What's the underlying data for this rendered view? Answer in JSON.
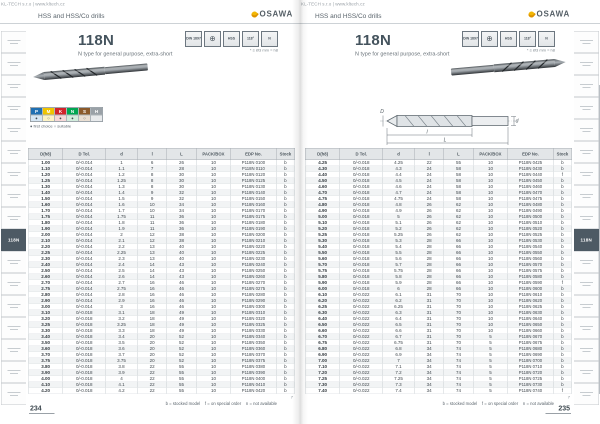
{
  "header": {
    "url_line": "KL-TECH s.r.o | www.kltech.cz",
    "category": "HSS and HSS/Co drills",
    "brand": "OSAWA"
  },
  "product": {
    "series": "118N",
    "description": "N type for general purpose, extra-short",
    "icons": [
      {
        "name": "din-1897-icon",
        "label": "DIN 1897"
      },
      {
        "name": "cross-section-icon",
        "label": "⊕"
      },
      {
        "name": "hss-grade-icon",
        "label": "HSS"
      },
      {
        "name": "point-angle-118-icon",
        "label": "118°"
      },
      {
        "name": "helix-n-icon",
        "label": "N"
      }
    ],
    "icon_note": "* ≤ Ø3 mm = h8"
  },
  "material_strip": {
    "groups": [
      {
        "code": "P",
        "color": "#1f6fb2",
        "tint": "#d6e6f3",
        "mark": "●"
      },
      {
        "code": "M",
        "color": "#f0c400",
        "tint": "#fdf3c4",
        "mark": "○"
      },
      {
        "code": "K",
        "color": "#d2232a",
        "tint": "#f6d7d8",
        "mark": "●"
      },
      {
        "code": "N",
        "color": "#00a651",
        "tint": "#d2ecdc",
        "mark": "●"
      },
      {
        "code": "S",
        "color": "#8b5a2b",
        "tint": "#e9ded2",
        "mark": "○"
      },
      {
        "code": "H",
        "color": "#9aa1a7",
        "tint": "#e8eaec",
        "mark": ""
      }
    ],
    "legend": "● first choice    ○ suitable"
  },
  "diagram": {
    "labels": {
      "D": "D",
      "d": "d",
      "l": "l",
      "L": "L"
    }
  },
  "table": {
    "columns": [
      "D(h8)",
      "D Tol.",
      "d",
      "l",
      "L",
      "PACK/BOX",
      "EDP No.",
      "Stock"
    ]
  },
  "left_table_rows": [
    [
      "1.00",
      "0/-0.014",
      "1",
      "6",
      "26",
      "10",
      "P118N 0100",
      "b"
    ],
    [
      "1.10",
      "0/-0.014",
      "1.1",
      "7",
      "28",
      "10",
      "P118N 0110",
      "b"
    ],
    [
      "1.20",
      "0/-0.014",
      "1.2",
      "8",
      "30",
      "10",
      "P118N 0120",
      "b"
    ],
    [
      "1.25",
      "0/-0.014",
      "1.25",
      "8",
      "30",
      "10",
      "P118N 0125",
      "b"
    ],
    [
      "1.30",
      "0/-0.014",
      "1.3",
      "8",
      "30",
      "10",
      "P118N 0130",
      "b"
    ],
    [
      "1.40",
      "0/-0.014",
      "1.4",
      "9",
      "32",
      "10",
      "P118N 0140",
      "b"
    ],
    [
      "1.50",
      "0/-0.014",
      "1.5",
      "9",
      "32",
      "10",
      "P118N 0150",
      "b"
    ],
    [
      "1.60",
      "0/-0.014",
      "1.6",
      "10",
      "34",
      "10",
      "P118N 0160",
      "b"
    ],
    [
      "1.70",
      "0/-0.014",
      "1.7",
      "10",
      "34",
      "10",
      "P118N 0170",
      "b"
    ],
    [
      "1.75",
      "0/-0.014",
      "1.75",
      "11",
      "36",
      "10",
      "P118N 0175",
      "b"
    ],
    [
      "1.80",
      "0/-0.014",
      "1.8",
      "11",
      "36",
      "10",
      "P118N 0180",
      "b"
    ],
    [
      "1.90",
      "0/-0.014",
      "1.9",
      "11",
      "36",
      "10",
      "P118N 0190",
      "b"
    ],
    [
      "2.00",
      "0/-0.014",
      "2",
      "12",
      "38",
      "10",
      "P118N 0200",
      "b"
    ],
    [
      "2.10",
      "0/-0.014",
      "2.1",
      "12",
      "38",
      "10",
      "P118N 0210",
      "b"
    ],
    [
      "2.20",
      "0/-0.014",
      "2.2",
      "13",
      "40",
      "10",
      "P118N 0220",
      "b"
    ],
    [
      "2.25",
      "0/-0.014",
      "2.25",
      "13",
      "40",
      "10",
      "P118N 0225",
      "b"
    ],
    [
      "2.30",
      "0/-0.014",
      "2.3",
      "13",
      "40",
      "10",
      "P118N 0230",
      "b"
    ],
    [
      "2.40",
      "0/-0.014",
      "2.4",
      "14",
      "43",
      "10",
      "P118N 0240",
      "b"
    ],
    [
      "2.50",
      "0/-0.014",
      "2.5",
      "14",
      "43",
      "10",
      "P118N 0250",
      "b"
    ],
    [
      "2.60",
      "0/-0.014",
      "2.6",
      "14",
      "43",
      "10",
      "P118N 0260",
      "b"
    ],
    [
      "2.70",
      "0/-0.014",
      "2.7",
      "16",
      "46",
      "10",
      "P118N 0270",
      "b"
    ],
    [
      "2.75",
      "0/-0.014",
      "2.75",
      "16",
      "46",
      "10",
      "P118N 0275",
      "b"
    ],
    [
      "2.80",
      "0/-0.014",
      "2.8",
      "16",
      "46",
      "10",
      "P118N 0280",
      "b"
    ],
    [
      "2.90",
      "0/-0.014",
      "2.9",
      "16",
      "46",
      "10",
      "P118N 0290",
      "b"
    ],
    [
      "3.00",
      "0/-0.014",
      "3",
      "16",
      "46",
      "10",
      "P118N 0300",
      "b"
    ],
    [
      "3.10",
      "0/-0.018",
      "3.1",
      "18",
      "49",
      "10",
      "P118N 0310",
      "b"
    ],
    [
      "3.20",
      "0/-0.018",
      "3.2",
      "18",
      "49",
      "10",
      "P118N 0320",
      "b"
    ],
    [
      "3.25",
      "0/-0.018",
      "3.25",
      "18",
      "49",
      "10",
      "P118N 0325",
      "b"
    ],
    [
      "3.30",
      "0/-0.018",
      "3.3",
      "18",
      "49",
      "10",
      "P118N 0330",
      "b"
    ],
    [
      "3.40",
      "0/-0.018",
      "3.4",
      "20",
      "52",
      "10",
      "P118N 0340",
      "b"
    ],
    [
      "3.50",
      "0/-0.018",
      "3.5",
      "20",
      "52",
      "10",
      "P118N 0350",
      "b"
    ],
    [
      "3.60",
      "0/-0.018",
      "3.6",
      "20",
      "52",
      "10",
      "P118N 0360",
      "b"
    ],
    [
      "3.70",
      "0/-0.018",
      "3.7",
      "20",
      "52",
      "10",
      "P118N 0370",
      "b"
    ],
    [
      "3.75",
      "0/-0.018",
      "3.75",
      "20",
      "52",
      "10",
      "P118N 0375",
      "b"
    ],
    [
      "3.80",
      "0/-0.018",
      "3.8",
      "22",
      "55",
      "10",
      "P118N 0380",
      "b"
    ],
    [
      "3.90",
      "0/-0.018",
      "3.9",
      "22",
      "55",
      "10",
      "P118N 0390",
      "b"
    ],
    [
      "4.00",
      "0/-0.018",
      "4",
      "22",
      "55",
      "10",
      "P118N 0400",
      "b"
    ],
    [
      "4.10",
      "0/-0.018",
      "4.1",
      "22",
      "55",
      "10",
      "P118N 0410",
      "b"
    ],
    [
      "4.20",
      "0/-0.018",
      "4.2",
      "22",
      "55",
      "10",
      "P118N 0420",
      "b"
    ]
  ],
  "right_table_rows": [
    [
      "4.25",
      "0/-0.018",
      "4.25",
      "22",
      "55",
      "10",
      "P118N 0425",
      "b"
    ],
    [
      "4.30",
      "0/-0.018",
      "4.3",
      "24",
      "58",
      "10",
      "P118N 0430",
      "b"
    ],
    [
      "4.40",
      "0/-0.018",
      "4.4",
      "24",
      "58",
      "10",
      "P118N 0440",
      "f"
    ],
    [
      "4.50",
      "0/-0.018",
      "4.5",
      "24",
      "58",
      "10",
      "P118N 0450",
      "b"
    ],
    [
      "4.60",
      "0/-0.018",
      "4.6",
      "24",
      "58",
      "10",
      "P118N 0460",
      "b"
    ],
    [
      "4.70",
      "0/-0.018",
      "4.7",
      "24",
      "58",
      "10",
      "P118N 0470",
      "b"
    ],
    [
      "4.75",
      "0/-0.018",
      "4.75",
      "24",
      "58",
      "10",
      "P118N 0475",
      "b"
    ],
    [
      "4.80",
      "0/-0.018",
      "4.8",
      "26",
      "62",
      "10",
      "P118N 0480",
      "b"
    ],
    [
      "4.90",
      "0/-0.018",
      "4.9",
      "26",
      "62",
      "10",
      "P118N 0490",
      "b"
    ],
    [
      "5.00",
      "0/-0.018",
      "5",
      "26",
      "62",
      "10",
      "P118N 0500",
      "b"
    ],
    [
      "5.10",
      "0/-0.018",
      "5.1",
      "26",
      "62",
      "10",
      "P118N 0510",
      "b"
    ],
    [
      "5.20",
      "0/-0.018",
      "5.2",
      "26",
      "62",
      "10",
      "P118N 0520",
      "b"
    ],
    [
      "5.25",
      "0/-0.018",
      "5.25",
      "26",
      "62",
      "10",
      "P118N 0525",
      "b"
    ],
    [
      "5.30",
      "0/-0.018",
      "5.3",
      "28",
      "66",
      "10",
      "P118N 0530",
      "b"
    ],
    [
      "5.40",
      "0/-0.018",
      "5.4",
      "28",
      "66",
      "10",
      "P118N 0540",
      "b"
    ],
    [
      "5.50",
      "0/-0.018",
      "5.5",
      "28",
      "66",
      "10",
      "P118N 0550",
      "b"
    ],
    [
      "5.60",
      "0/-0.018",
      "5.6",
      "28",
      "66",
      "10",
      "P118N 0560",
      "b"
    ],
    [
      "5.70",
      "0/-0.018",
      "5.7",
      "28",
      "66",
      "10",
      "P118N 0570",
      "b"
    ],
    [
      "5.75",
      "0/-0.018",
      "5.75",
      "28",
      "66",
      "10",
      "P118N 0575",
      "b"
    ],
    [
      "5.80",
      "0/-0.018",
      "5.8",
      "28",
      "66",
      "10",
      "P118N 0580",
      "b"
    ],
    [
      "5.90",
      "0/-0.018",
      "5.9",
      "28",
      "66",
      "10",
      "P118N 0590",
      "f"
    ],
    [
      "6.00",
      "0/-0.018",
      "6",
      "28",
      "66",
      "10",
      "P118N 0600",
      "b"
    ],
    [
      "6.10",
      "0/-0.022",
      "6.1",
      "31",
      "70",
      "10",
      "P118N 0610",
      "b"
    ],
    [
      "6.20",
      "0/-0.022",
      "6.2",
      "31",
      "70",
      "10",
      "P118N 0620",
      "b"
    ],
    [
      "6.25",
      "0/-0.022",
      "6.25",
      "31",
      "70",
      "10",
      "P118N 0625",
      "b"
    ],
    [
      "6.30",
      "0/-0.022",
      "6.3",
      "31",
      "70",
      "10",
      "P118N 0630",
      "b"
    ],
    [
      "6.40",
      "0/-0.022",
      "6.4",
      "31",
      "70",
      "10",
      "P118N 0640",
      "b"
    ],
    [
      "6.50",
      "0/-0.022",
      "6.5",
      "31",
      "70",
      "10",
      "P118N 0650",
      "b"
    ],
    [
      "6.60",
      "0/-0.022",
      "6.6",
      "31",
      "70",
      "10",
      "P118N 0660",
      "b"
    ],
    [
      "6.70",
      "0/-0.022",
      "6.7",
      "31",
      "70",
      "5",
      "P118N 0670",
      "b"
    ],
    [
      "6.75",
      "0/-0.022",
      "6.75",
      "31",
      "70",
      "5",
      "P118N 0675",
      "b"
    ],
    [
      "6.80",
      "0/-0.022",
      "6.8",
      "34",
      "74",
      "5",
      "P118N 0680",
      "b"
    ],
    [
      "6.90",
      "0/-0.022",
      "6.9",
      "34",
      "74",
      "5",
      "P118N 0690",
      "b"
    ],
    [
      "7.00",
      "0/-0.022",
      "7",
      "34",
      "74",
      "5",
      "P118N 0700",
      "b"
    ],
    [
      "7.10",
      "0/-0.022",
      "7.1",
      "34",
      "74",
      "5",
      "P118N 0710",
      "b"
    ],
    [
      "7.20",
      "0/-0.022",
      "7.2",
      "34",
      "74",
      "5",
      "P118N 0720",
      "b"
    ],
    [
      "7.25",
      "0/-0.022",
      "7.25",
      "34",
      "74",
      "5",
      "P118N 0725",
      "b"
    ],
    [
      "7.30",
      "0/-0.022",
      "7.3",
      "34",
      "74",
      "5",
      "P118N 0730",
      "b"
    ],
    [
      "7.40",
      "0/-0.022",
      "7.4",
      "34",
      "74",
      "5",
      "P118N 0740",
      "f"
    ]
  ],
  "footer": {
    "stock_legend": "b = stocked model    f = on special order    n = not available",
    "footnote_marker": "7",
    "left_page_number": "234",
    "right_page_number": "235"
  },
  "sidebar": {
    "tabs": [
      {
        "label": "",
        "active": false
      },
      {
        "label": "",
        "active": false
      },
      {
        "label": "",
        "active": false
      },
      {
        "label": "",
        "active": false
      },
      {
        "label": "",
        "active": false
      },
      {
        "label": "",
        "active": false
      },
      {
        "label": "",
        "active": false
      },
      {
        "label": "",
        "active": false
      },
      {
        "label": "",
        "active": false
      },
      {
        "label": "118N",
        "active": true
      },
      {
        "label": "",
        "active": false
      },
      {
        "label": "",
        "active": false
      },
      {
        "label": "",
        "active": false
      },
      {
        "label": "",
        "active": false
      },
      {
        "label": "",
        "active": false
      },
      {
        "label": "",
        "active": false
      },
      {
        "label": "",
        "active": false
      }
    ]
  }
}
